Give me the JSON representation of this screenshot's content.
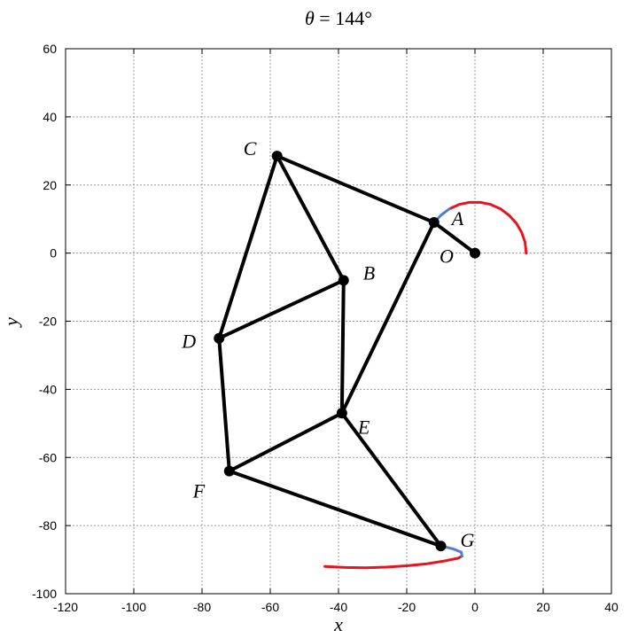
{
  "title": {
    "symbol": "θ",
    "rest": " = 144°"
  },
  "axes": {
    "xlabel": "x",
    "ylabel": "y",
    "xlim": [
      -120,
      40
    ],
    "ylim": [
      -100,
      60
    ],
    "xticks": [
      -120,
      -100,
      -80,
      -60,
      -40,
      -20,
      0,
      20,
      40
    ],
    "yticks": [
      -100,
      -80,
      -60,
      -40,
      -20,
      0,
      20,
      40,
      60
    ],
    "grid": true
  },
  "colors": {
    "link": "#000000",
    "trace_red": "#e8141c",
    "trace_blue": "#4d7fd6",
    "grid": "#9a9a9a"
  },
  "chart_data": {
    "type": "linkage",
    "angle_deg": 144,
    "joints": [
      {
        "id": "O",
        "label": "O",
        "x": 0,
        "y": 0
      },
      {
        "id": "A",
        "label": "A",
        "x": -12,
        "y": 9
      },
      {
        "id": "B",
        "label": "B",
        "x": -38.5,
        "y": -8
      },
      {
        "id": "C",
        "label": "C",
        "x": -58,
        "y": 28.5
      },
      {
        "id": "D",
        "label": "D",
        "x": -75,
        "y": -25
      },
      {
        "id": "E",
        "label": "E",
        "x": -39,
        "y": -47
      },
      {
        "id": "F",
        "label": "F",
        "x": -72,
        "y": -64
      },
      {
        "id": "G",
        "label": "G",
        "x": -10,
        "y": -86
      }
    ],
    "links": [
      [
        "O",
        "A"
      ],
      [
        "A",
        "C"
      ],
      [
        "C",
        "B"
      ],
      [
        "C",
        "D"
      ],
      [
        "B",
        "D"
      ],
      [
        "A",
        "E"
      ],
      [
        "B",
        "E"
      ],
      [
        "D",
        "F"
      ],
      [
        "E",
        "F"
      ],
      [
        "F",
        "G"
      ],
      [
        "E",
        "G"
      ]
    ],
    "traces": [
      {
        "color": "red",
        "points": [
          [
            15,
            0
          ],
          [
            14.7,
            3.1
          ],
          [
            13.7,
            6.1
          ],
          [
            12.1,
            8.8
          ],
          [
            10,
            11.1
          ],
          [
            7.5,
            13
          ],
          [
            4.6,
            14.3
          ],
          [
            1.6,
            14.9
          ],
          [
            -1.6,
            14.9
          ],
          [
            -4.6,
            14.3
          ],
          [
            -7.5,
            13
          ]
        ]
      },
      {
        "color": "blue",
        "points": [
          [
            -7.5,
            13
          ],
          [
            -10,
            11.1
          ],
          [
            -12,
            9
          ]
        ]
      },
      {
        "color": "red",
        "points": [
          [
            -44,
            -92
          ],
          [
            -38,
            -92.3
          ],
          [
            -32,
            -92.4
          ],
          [
            -26,
            -92.2
          ],
          [
            -20,
            -91.8
          ],
          [
            -14,
            -91.2
          ],
          [
            -9,
            -90.4
          ],
          [
            -5,
            -89.6
          ],
          [
            -3.8,
            -89
          ]
        ]
      },
      {
        "color": "blue",
        "points": [
          [
            -3.8,
            -89
          ],
          [
            -4,
            -87.8
          ],
          [
            -6.5,
            -86.8
          ],
          [
            -10,
            -86
          ]
        ]
      }
    ]
  }
}
